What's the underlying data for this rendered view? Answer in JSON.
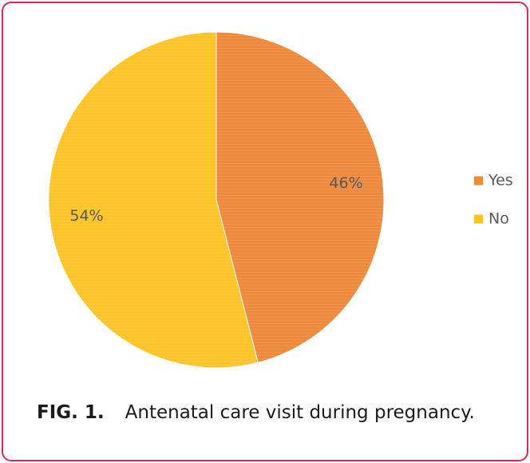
{
  "chart_data": {
    "type": "pie",
    "categories": [
      "Yes",
      "No"
    ],
    "values": [
      46,
      54
    ],
    "data_labels": [
      "46%",
      "54%"
    ],
    "colors": [
      "#ef8a3c",
      "#fcc425"
    ],
    "legend": {
      "position": "right",
      "entries": [
        "Yes",
        "No"
      ]
    },
    "title": ""
  },
  "caption": {
    "label": "FIG. 1.",
    "text": "Antenatal care visit during pregnancy."
  }
}
